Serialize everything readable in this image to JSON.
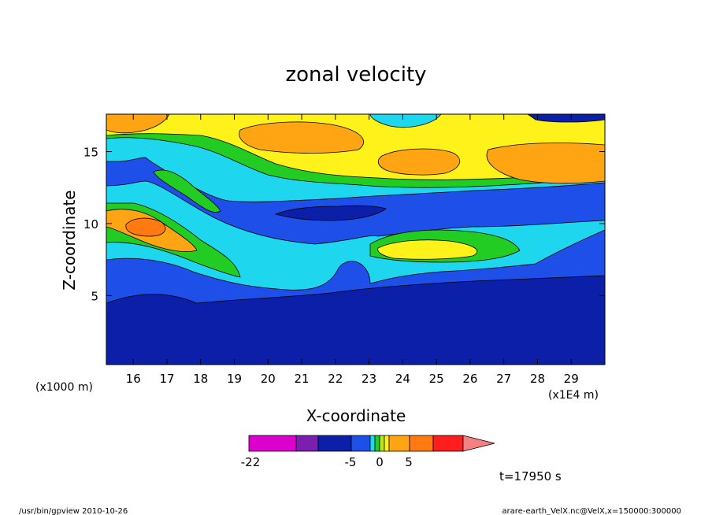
{
  "chart_data": {
    "type": "heatmap",
    "title": "zonal velocity",
    "xlabel": "X-coordinate",
    "ylabel": "Z-coordinate",
    "x_unit_label": "(x1E4 m)",
    "y_unit_label": "(x1000 m)",
    "xlim": [
      15.2,
      30.0
    ],
    "ylim": [
      0.2,
      17.6
    ],
    "x_ticks": [
      "16",
      "17",
      "18",
      "19",
      "20",
      "21",
      "22",
      "23",
      "24",
      "25",
      "26",
      "27",
      "28",
      "29"
    ],
    "y_ticks": [
      "5",
      "10",
      "15"
    ],
    "x_tick_values": [
      16,
      17,
      18,
      19,
      20,
      21,
      22,
      23,
      24,
      25,
      26,
      27,
      28,
      29
    ],
    "y_tick_values": [
      5,
      10,
      15
    ],
    "colorbar": {
      "labels": [
        "-22",
        "-5",
        "0",
        "5"
      ],
      "label_values": [
        -22,
        -5,
        0,
        5
      ],
      "colors": [
        "#dd00cc",
        "#7a1fb0",
        "#0b1fa8",
        "#1e4fe8",
        "#1ed7ee",
        "#22cc22",
        "#b8e61a",
        "#fff21a",
        "#ffa413",
        "#ff7a10",
        "#ff1e1e",
        "#f48080"
      ]
    },
    "layers": [
      {
        "name": "deep",
        "color": "#0b1fa8"
      },
      {
        "name": "mid",
        "color": "#1e4fe8"
      },
      {
        "name": "cyan",
        "color": "#1ed7ee"
      },
      {
        "name": "green",
        "color": "#22cc22"
      },
      {
        "name": "yellow",
        "color": "#fff21a"
      },
      {
        "name": "orange",
        "color": "#ffa413"
      }
    ]
  },
  "annotations": {
    "time": "t=17950 s",
    "footer_left": "/usr/bin/gpview  2010-10-26",
    "footer_right": "arare-earth_VelX.nc@VelX,x=150000:300000"
  }
}
